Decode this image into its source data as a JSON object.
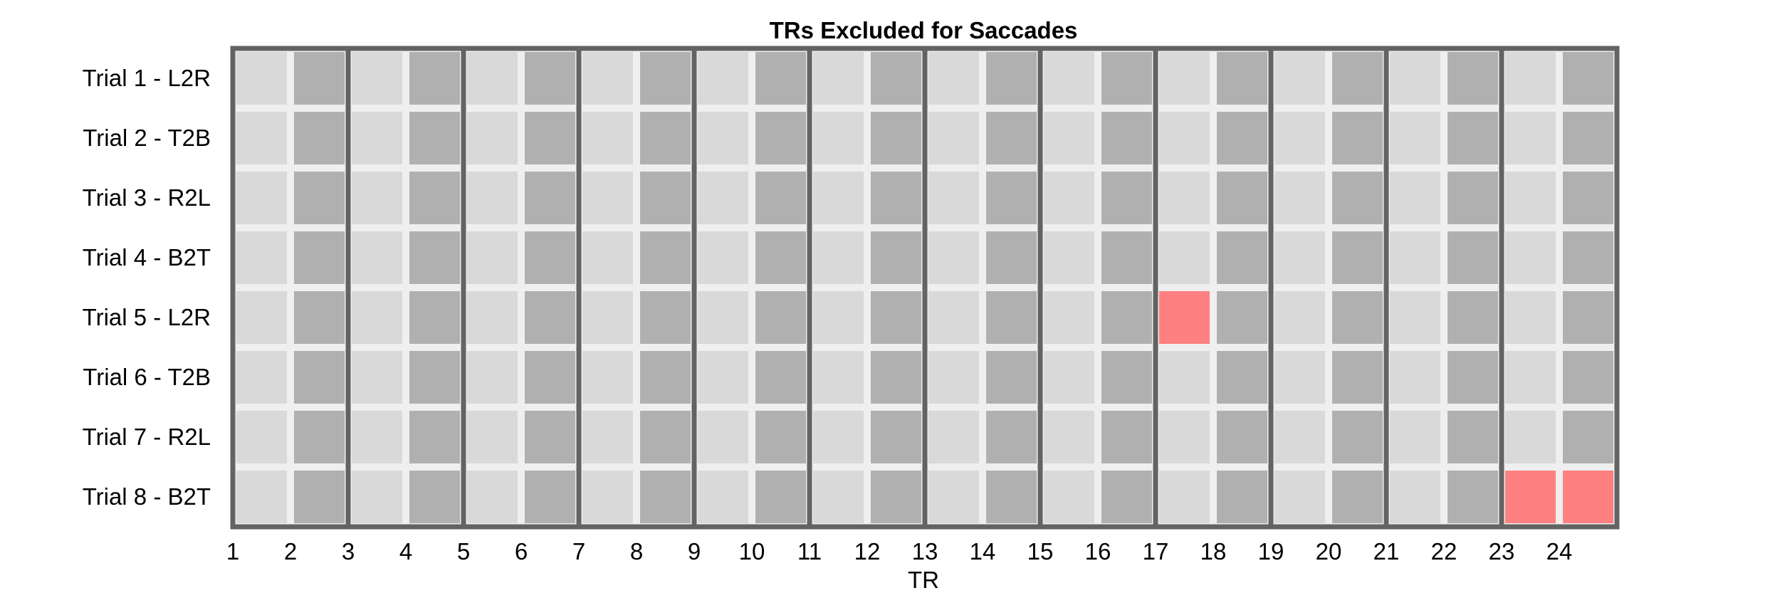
{
  "chart_data": {
    "type": "heatmap",
    "title": "TRs Excluded for Saccades",
    "xlabel": "TR",
    "ylabel": "",
    "x_ticks": [
      "1",
      "2",
      "3",
      "4",
      "5",
      "6",
      "7",
      "8",
      "9",
      "10",
      "11",
      "12",
      "13",
      "14",
      "15",
      "16",
      "17",
      "18",
      "19",
      "20",
      "21",
      "22",
      "23",
      "24"
    ],
    "rows": [
      "Trial 1 - L2R",
      "Trial 2 - T2B",
      "Trial 3 - R2L",
      "Trial 4 - B2T",
      "Trial 5 - L2R",
      "Trial 6 - T2B",
      "Trial 7 - R2L",
      "Trial 8 - B2T"
    ],
    "num_trs": 24,
    "excluded": [
      {
        "row": "Trial 5 - L2R",
        "tr": 17
      },
      {
        "row": "Trial 8 - B2T",
        "tr": 23
      },
      {
        "row": "Trial 8 - B2T",
        "tr": 24
      }
    ],
    "colors": {
      "odd_tr": "#d9d9d9",
      "even_tr": "#b0b0b0",
      "excluded": "#ff8080",
      "separator": "#636363",
      "gap": "#efefef"
    },
    "grid": true
  }
}
